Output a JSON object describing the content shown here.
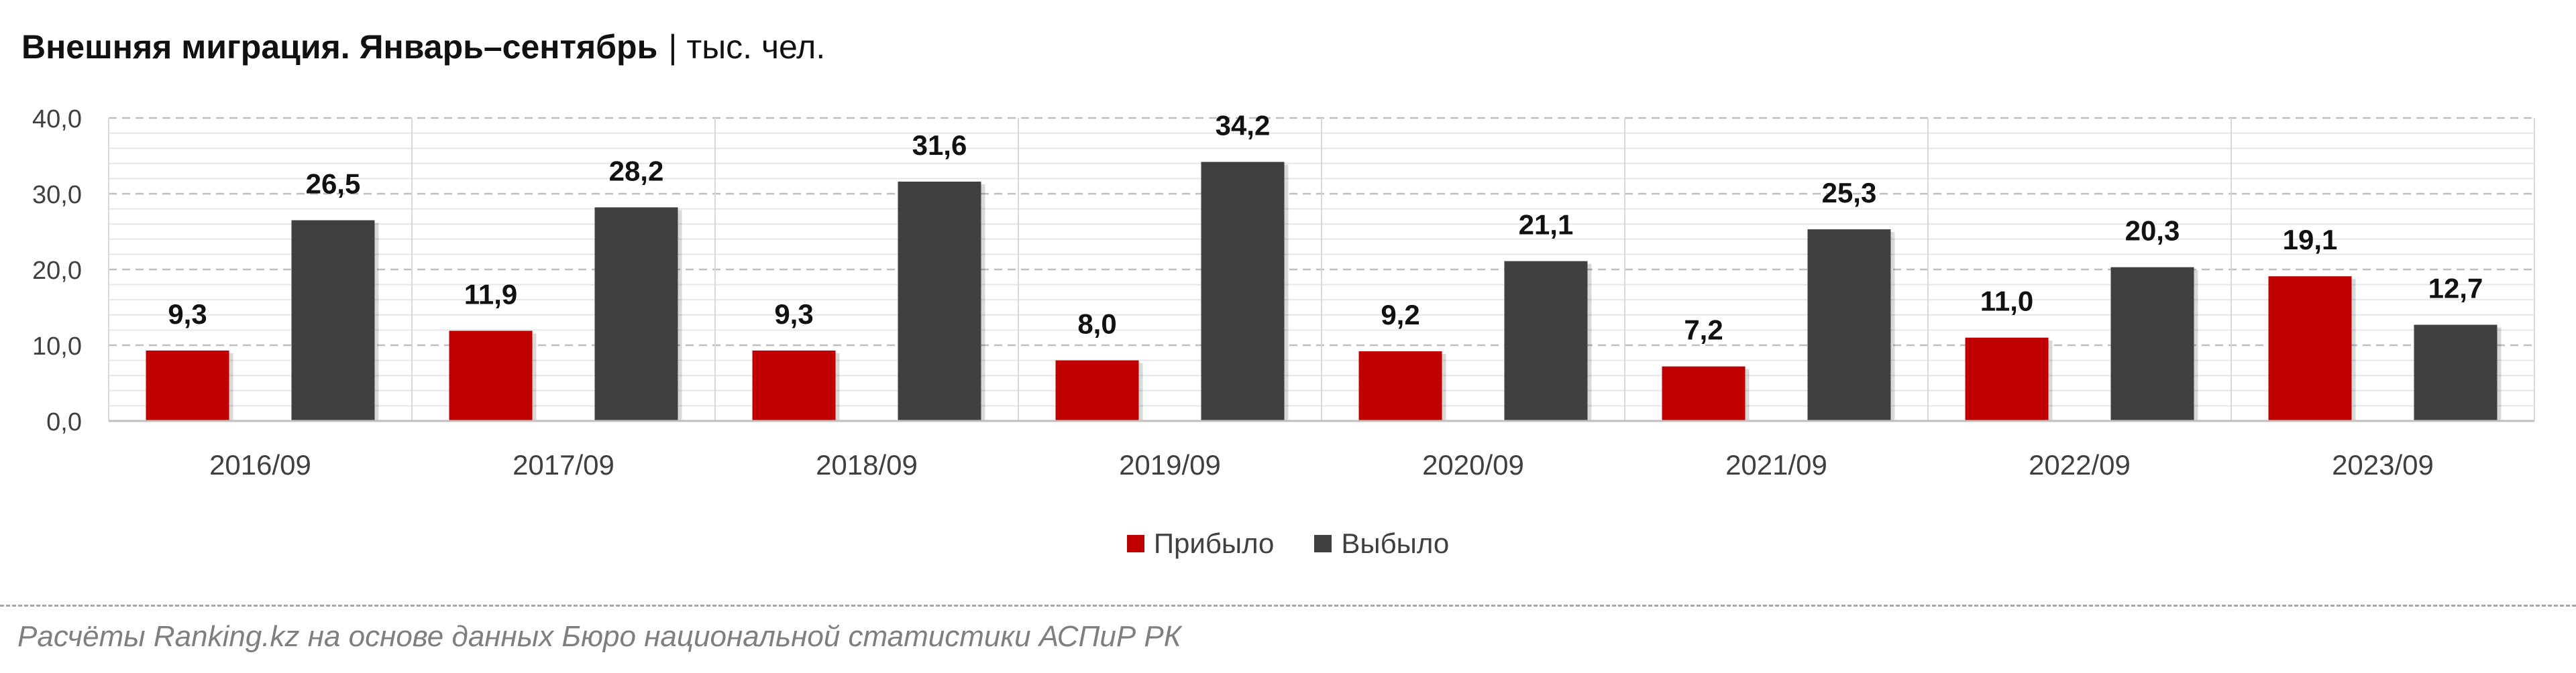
{
  "title": {
    "main": "Внешняя миграция. Январь–сентябрь",
    "separator": "|",
    "unit": "тыс. чел."
  },
  "chart_data": {
    "type": "bar",
    "title": "Внешняя миграция. Январь–сентябрь",
    "unit": "тыс. чел.",
    "categories": [
      "2016/09",
      "2017/09",
      "2018/09",
      "2019/09",
      "2020/09",
      "2021/09",
      "2022/09",
      "2023/09"
    ],
    "series": [
      {
        "name": "Прибыло",
        "color": "#c00000",
        "values": [
          9.3,
          11.9,
          9.3,
          8.0,
          9.2,
          7.2,
          11.0,
          19.1
        ],
        "labels": [
          "9,3",
          "11,9",
          "9,3",
          "8,0",
          "9,2",
          "7,2",
          "11,0",
          "19,1"
        ]
      },
      {
        "name": "Выбыло",
        "color": "#404040",
        "values": [
          26.5,
          28.2,
          31.6,
          34.2,
          21.1,
          25.3,
          20.3,
          12.7
        ],
        "labels": [
          "26,5",
          "28,2",
          "31,6",
          "34,2",
          "21,1",
          "25,3",
          "20,3",
          "12,7"
        ]
      }
    ],
    "ylim": [
      0,
      40
    ],
    "yticks": [
      0,
      10,
      20,
      30,
      40
    ],
    "ytick_labels": [
      "0,0",
      "10,0",
      "20,0",
      "30,0",
      "40,0"
    ],
    "xlabel": "",
    "ylabel": "",
    "grid": true,
    "legend": "bottom-center"
  },
  "legend": {
    "items": [
      {
        "label": "Прибыло",
        "color": "#c00000"
      },
      {
        "label": "Выбыло",
        "color": "#404040"
      }
    ]
  },
  "source": "Расчёты Ranking.kz на основе данных Бюро национальной статистики АСПиР РК"
}
